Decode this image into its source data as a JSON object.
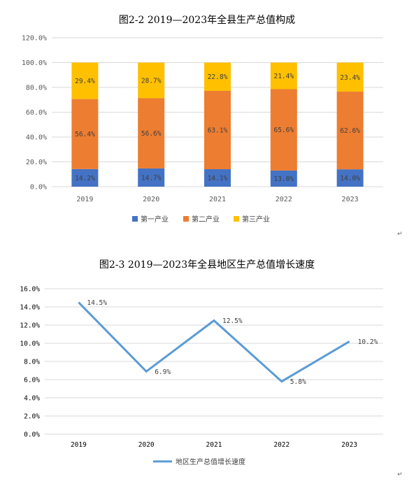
{
  "chart_data": [
    {
      "type": "bar",
      "stacked": true,
      "title": "图2-2   2019—2023年全县生产总值构成",
      "categories": [
        "2019",
        "2020",
        "2021",
        "2022",
        "2023"
      ],
      "series": [
        {
          "name": "第一产业",
          "values": [
            14.2,
            14.7,
            14.1,
            13.0,
            14.0
          ],
          "labels": [
            "14.2%",
            "14.7%",
            "14.1%",
            "13.0%",
            "14.0%"
          ],
          "color": "#4472C4"
        },
        {
          "name": "第二产业",
          "values": [
            56.4,
            56.6,
            63.1,
            65.6,
            62.6
          ],
          "labels": [
            "56.4%",
            "56.6%",
            "63.1%",
            "65.6%",
            "62.6%"
          ],
          "color": "#ED7D31"
        },
        {
          "name": "第三产业",
          "values": [
            29.4,
            28.7,
            22.8,
            21.4,
            23.4
          ],
          "labels": [
            "29.4%",
            "28.7%",
            "22.8%",
            "21.4%",
            "23.4%"
          ],
          "color": "#FFC000"
        }
      ],
      "yticks": [
        "0.0%",
        "20.0%",
        "40.0%",
        "60.0%",
        "80.0%",
        "100.0%",
        "120.0%"
      ],
      "ylim": [
        0,
        120
      ],
      "grid": true,
      "legend": "bottom"
    },
    {
      "type": "line",
      "title": "图2-3   2019—2023年全县地区生产总值增长速度",
      "categories": [
        "2019",
        "2020",
        "2021",
        "2022",
        "2023"
      ],
      "series": [
        {
          "name": "地区生产总值增长速度",
          "values": [
            14.5,
            6.9,
            12.5,
            5.8,
            10.2
          ],
          "labels": [
            "14.5%",
            "6.9%",
            "12.5%",
            "5.8%",
            "10.2%"
          ],
          "color": "#5B9BD5"
        }
      ],
      "yticks": [
        "0.0%",
        "2.0%",
        "4.0%",
        "6.0%",
        "8.0%",
        "10.0%",
        "12.0%",
        "14.0%",
        "16.0%"
      ],
      "ylim": [
        0,
        16
      ],
      "grid": true,
      "legend": "bottom"
    }
  ],
  "para_mark": "↵"
}
